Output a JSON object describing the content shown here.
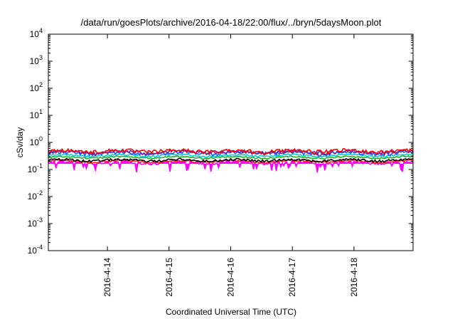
{
  "chart_data": {
    "type": "area",
    "title": "/data/run/goesPlots/archive/2016-04-18/22:00/flux/../bryn/5daysMoon.plot",
    "xlabel": "Coordinated Universal Time (UTC)",
    "ylabel": "cSv/day",
    "yscale": "log",
    "ylim": [
      0.0001,
      10000
    ],
    "y_ticks": [
      {
        "base": "10",
        "exp": "4",
        "value": 10000
      },
      {
        "base": "10",
        "exp": "3",
        "value": 1000
      },
      {
        "base": "10",
        "exp": "2",
        "value": 100
      },
      {
        "base": "10",
        "exp": "1",
        "value": 10
      },
      {
        "base": "10",
        "exp": "0",
        "value": 1
      },
      {
        "base": "10",
        "exp": "-1",
        "value": 0.1
      },
      {
        "base": "10",
        "exp": "-2",
        "value": 0.01
      },
      {
        "base": "10",
        "exp": "-3",
        "value": 0.001
      },
      {
        "base": "10",
        "exp": "-4",
        "value": 0.0001
      }
    ],
    "xlim": [
      "2016-04-13T01:00",
      "2016-04-18T23:00"
    ],
    "x_ticks": [
      {
        "label": "2016-4-14",
        "date": "2016-04-14T00:00"
      },
      {
        "label": "2016-4-15",
        "date": "2016-04-15T00:00"
      },
      {
        "label": "2016-4-16",
        "date": "2016-04-16T00:00"
      },
      {
        "label": "2016-4-17",
        "date": "2016-04-17T00:00"
      },
      {
        "label": "2016-4-18",
        "date": "2016-04-18T00:00"
      }
    ],
    "grid": false,
    "series": [
      {
        "color": "#ff0000",
        "level": 0.48,
        "noise": 0.16,
        "dips": false
      },
      {
        "color": "#7a1fa0",
        "level": 0.44,
        "noise": 0.15,
        "dips": false
      },
      {
        "color": "#1e5cff",
        "level": 0.4,
        "noise": 0.16,
        "dips": false
      },
      {
        "color": "#00d0d0",
        "level": 0.33,
        "noise": 0.08,
        "dips": false
      },
      {
        "color": "#20b020",
        "level": 0.28,
        "noise": 0.06,
        "dips": false
      },
      {
        "color": "#000000",
        "level": 0.22,
        "noise": 0.1,
        "dips": false
      },
      {
        "color": "#ff2020",
        "level": 0.2,
        "noise": 0.08,
        "dips": false
      },
      {
        "color": "#ff00ff",
        "level": 0.18,
        "noise": 0.12,
        "dips": true
      }
    ]
  }
}
